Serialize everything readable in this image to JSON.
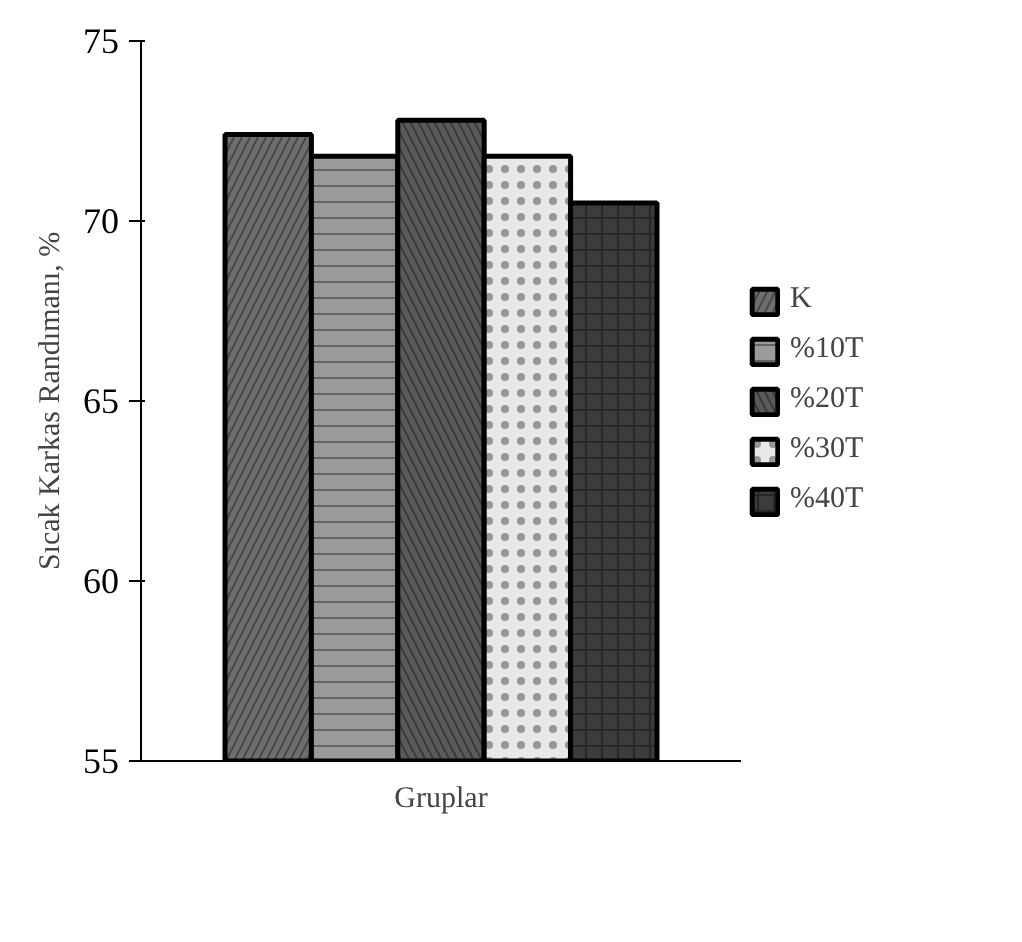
{
  "chart_data": {
    "type": "bar",
    "xlabel": "Gruplar",
    "ylabel": "Sıcak Karkas Randımanı, %",
    "categories": [
      null
    ],
    "series": [
      {
        "name": "K",
        "color": "#6e6e6e",
        "values": [
          72.4
        ]
      },
      {
        "name": "%10T",
        "color": "#9a9a9a",
        "values": [
          71.8
        ]
      },
      {
        "name": "%20T",
        "color": "#5a5a5a",
        "values": [
          72.8
        ]
      },
      {
        "name": "%30T",
        "color": "#e8e8e8",
        "values": [
          71.8
        ]
      },
      {
        "name": "%40T",
        "color": "#3c3c3c",
        "values": [
          70.5
        ]
      }
    ],
    "ylim": [
      55,
      75
    ],
    "yticks": [
      55,
      60,
      65,
      70,
      75
    ],
    "grid": false,
    "legend": "right"
  }
}
